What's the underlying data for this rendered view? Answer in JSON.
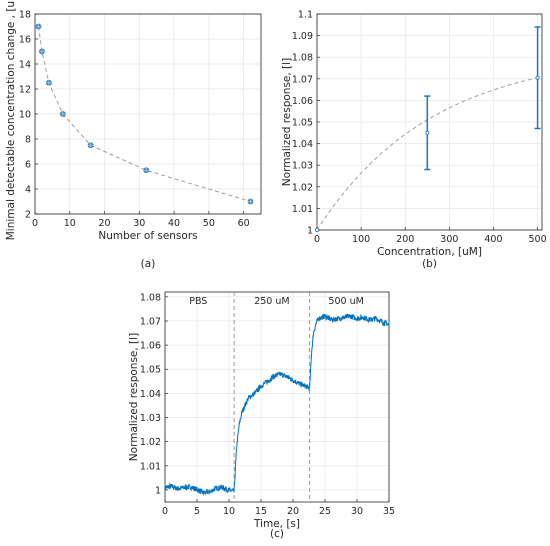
{
  "chart_data": [
    {
      "panel": "a",
      "caption": "(a)",
      "type": "scatter",
      "xlabel": "Number of sensors",
      "ylabel": "Minimal detectable concentration change , [uM]",
      "xlim": [
        0,
        65
      ],
      "ylim": [
        2,
        18
      ],
      "xticks": [
        0,
        10,
        20,
        30,
        40,
        50,
        60
      ],
      "yticks": [
        2,
        4,
        6,
        8,
        10,
        12,
        14,
        16,
        18
      ],
      "grid": true,
      "colors": {
        "marker": "#4a90c8",
        "fit": "#9e9e9e"
      },
      "points": [
        {
          "x": 1,
          "y": 17
        },
        {
          "x": 2,
          "y": 15
        },
        {
          "x": 4,
          "y": 12.5
        },
        {
          "x": 8,
          "y": 10
        },
        {
          "x": 16,
          "y": 7.5
        },
        {
          "x": 32,
          "y": 5.5
        },
        {
          "x": 62,
          "y": 3
        }
      ],
      "fit_line": true
    },
    {
      "panel": "b",
      "caption": "(b)",
      "type": "scatter",
      "xlabel": "Concentration, [uM]",
      "ylabel": "Normalized response, [l]",
      "xlim": [
        0,
        510
      ],
      "ylim": [
        1,
        1.1
      ],
      "xticks": [
        0,
        100,
        200,
        300,
        400,
        500
      ],
      "yticks": [
        1,
        1.01,
        1.02,
        1.03,
        1.04,
        1.05,
        1.06,
        1.07,
        1.08,
        1.09,
        1.1
      ],
      "grid": true,
      "colors": {
        "marker": "#1f77b4",
        "fit": "#9e9e9e"
      },
      "points": [
        {
          "x": 0,
          "y": 1.0,
          "err": 0
        },
        {
          "x": 250,
          "y": 1.045,
          "err": 0.017
        },
        {
          "x": 500,
          "y": 1.0705,
          "err": 0.0235
        }
      ],
      "fit_line": true
    },
    {
      "panel": "c",
      "caption": "(c)",
      "type": "line",
      "xlabel": "Time, [s]",
      "ylabel": "Normalized response, [l]",
      "xlim": [
        0,
        35
      ],
      "ylim": [
        0.995,
        1.082
      ],
      "xticks": [
        0,
        5,
        10,
        15,
        20,
        25,
        30,
        35
      ],
      "yticks": [
        1,
        1.01,
        1.02,
        1.03,
        1.04,
        1.05,
        1.06,
        1.07,
        1.08
      ],
      "grid": true,
      "colors": {
        "trace": "#0072bd",
        "divider": "#8c8c8c"
      },
      "dividers": [
        10.8,
        22.6
      ],
      "annotations": [
        {
          "text": "PBS",
          "x": 5.2,
          "y": 1.077
        },
        {
          "text": "250 uM",
          "x": 16.7,
          "y": 1.077
        },
        {
          "text": "500 uM",
          "x": 28.3,
          "y": 1.077
        }
      ],
      "series": [
        {
          "x": [
            0,
            1,
            2,
            3,
            4,
            5,
            6,
            7,
            8,
            9,
            10,
            10.8,
            11.2,
            11.6,
            12,
            12.5,
            13,
            13.5,
            14,
            15,
            16,
            17,
            18,
            19,
            20,
            21,
            22,
            22.6,
            22.9,
            23.2,
            23.6,
            24,
            25,
            26,
            27,
            28,
            29,
            30,
            31,
            32,
            33,
            34,
            35
          ],
          "y": [
            1.001,
            1.0015,
            1.0005,
            1.001,
            1.0012,
            1.0002,
            0.9988,
            0.9992,
            1.0008,
            1.001,
            0.9998,
            0.9995,
            1.018,
            1.027,
            1.032,
            1.035,
            1.038,
            1.039,
            1.04,
            1.043,
            1.045,
            1.047,
            1.048,
            1.047,
            1.0455,
            1.044,
            1.043,
            1.042,
            1.057,
            1.065,
            1.069,
            1.071,
            1.072,
            1.0705,
            1.071,
            1.0715,
            1.072,
            1.071,
            1.0715,
            1.0705,
            1.071,
            1.0695,
            1.0685
          ]
        }
      ]
    }
  ]
}
